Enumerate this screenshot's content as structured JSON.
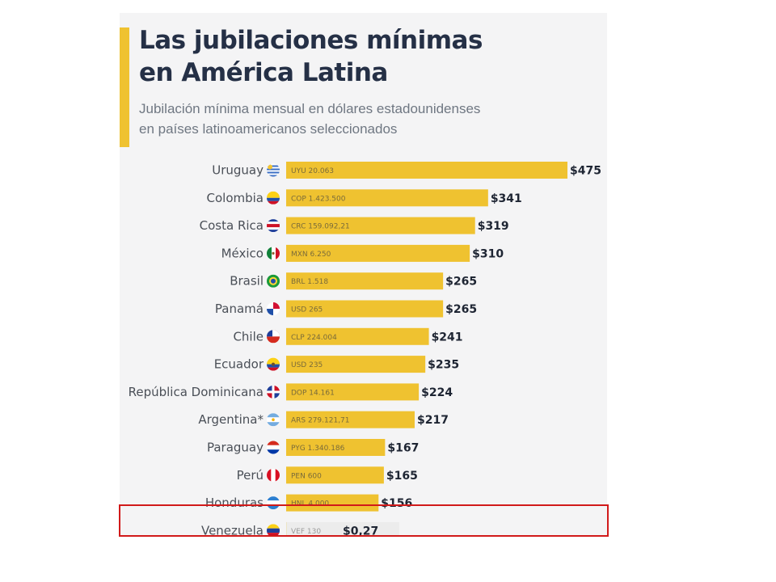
{
  "header": {
    "title": "Las jubilaciones mínimas\nen América Latina",
    "subtitle": "Jubilación mínima mensual en dólares estadounidenses\nen países latinoamericanos seleccionados"
  },
  "colors": {
    "bar": "#efc230",
    "accent": "#efc230",
    "highlight_border": "#d11a1a",
    "title": "#253046"
  },
  "chart_data": {
    "type": "bar",
    "orientation": "horizontal",
    "title": "Las jubilaciones mínimas en América Latina",
    "subtitle": "Jubilación mínima mensual en dólares estadounidenses en países latinoamericanos seleccionados",
    "categories": [
      "Uruguay",
      "Colombia",
      "Costa Rica",
      "México",
      "Brasil",
      "Panamá",
      "Chile",
      "Ecuador",
      "República Dominicana",
      "Argentina*",
      "Paraguay",
      "Perú",
      "Honduras",
      "Venezuela"
    ],
    "values": [
      475,
      341,
      319,
      310,
      265,
      265,
      241,
      235,
      224,
      217,
      167,
      165,
      156,
      0.27
    ],
    "value_labels": [
      "$475",
      "$341",
      "$319",
      "$310",
      "$265",
      "$265",
      "$241",
      "$235",
      "$224",
      "$217",
      "$167",
      "$165",
      "$156",
      "$0,27"
    ],
    "local_amounts": [
      "UYU 20.063",
      "COP 1.423.500",
      "CRC 159.092,21",
      "MXN 6.250",
      "BRL 1.518",
      "USD 265",
      "CLP 224.004",
      "USD 235",
      "DOP 14.161",
      "ARS 279.121,71",
      "PYG 1.340.186",
      "PEN 600",
      "HNL 4.000",
      "VEF 130"
    ],
    "flag_icons": [
      "uruguay-flag-icon",
      "colombia-flag-icon",
      "costa-rica-flag-icon",
      "mexico-flag-icon",
      "brazil-flag-icon",
      "panama-flag-icon",
      "chile-flag-icon",
      "ecuador-flag-icon",
      "dominican-republic-flag-icon",
      "argentina-flag-icon",
      "paraguay-flag-icon",
      "peru-flag-icon",
      "honduras-flag-icon",
      "venezuela-flag-icon"
    ],
    "highlighted_category": "Venezuela",
    "grid": false,
    "legend": "none"
  }
}
